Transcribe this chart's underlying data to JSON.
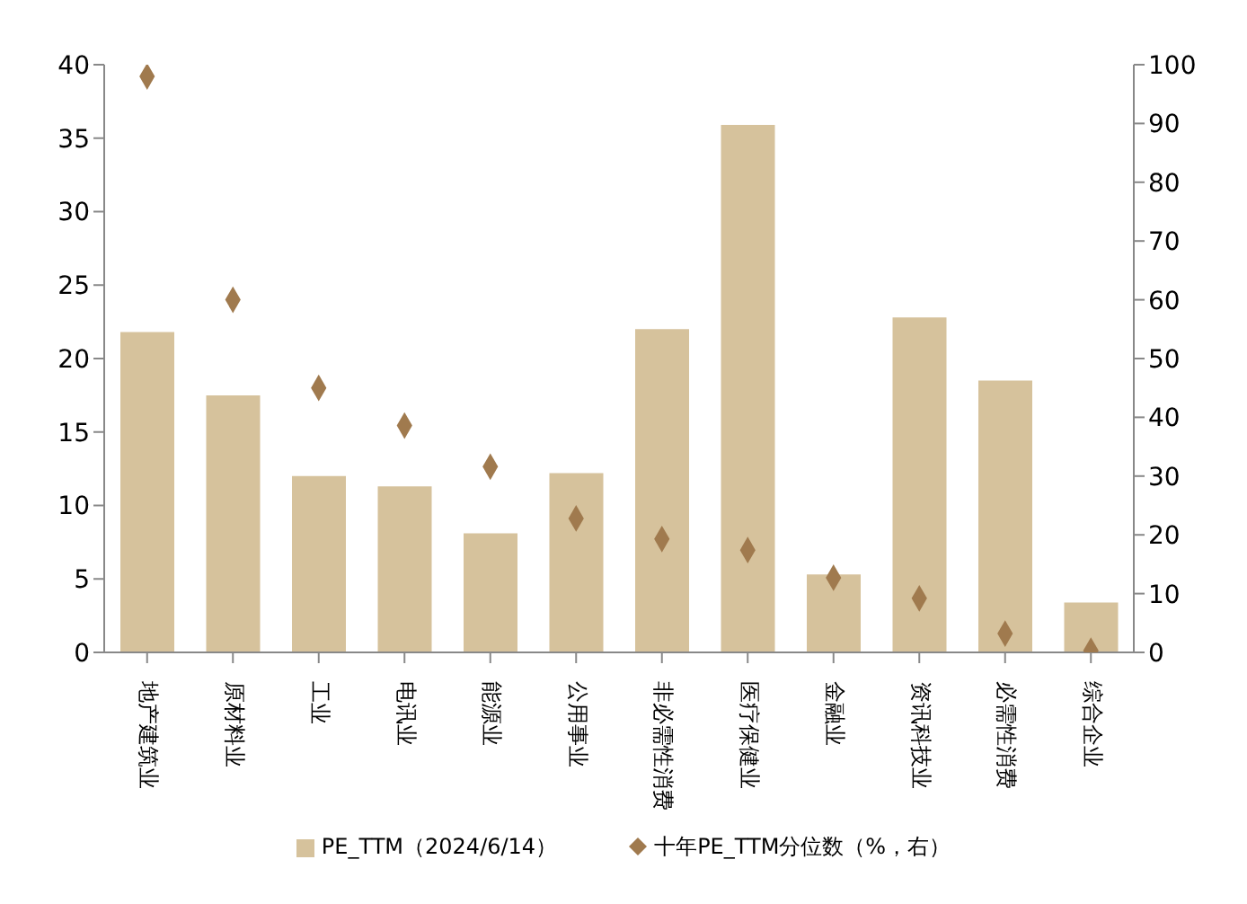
{
  "chart_data": {
    "type": "bar",
    "categories": [
      "地产建筑业",
      "原材料业",
      "工业",
      "电讯业",
      "能源业",
      "公用事业",
      "非必需性消费",
      "医疗保健业",
      "金融业",
      "资讯科技业",
      "必需性消费",
      "综合企业"
    ],
    "series": [
      {
        "name": "PE_TTM（2024/6/14）",
        "color": "#d6c29c",
        "values": [
          21.8,
          17.5,
          12.0,
          11.3,
          8.1,
          12.2,
          22.0,
          35.9,
          5.3,
          22.8,
          18.5,
          3.4
        ]
      },
      {
        "name": "十年PE_TTM分位数（%，右）",
        "type": "scatter",
        "axis": "y2",
        "color": "#a07a4e",
        "values": [
          98,
          60,
          45,
          38.6,
          31.6,
          22.8,
          19.3,
          17.4,
          12.7,
          9.2,
          3.2,
          0.3
        ]
      }
    ],
    "ylim": [
      0,
      40
    ],
    "yticks": [
      0,
      5,
      10,
      15,
      20,
      25,
      30,
      35,
      40
    ],
    "y2lim": [
      0,
      100
    ],
    "y2ticks": [
      0,
      10,
      20,
      30,
      40,
      50,
      60,
      70,
      80,
      90,
      100
    ],
    "marker": "diamond",
    "legend": "bottom",
    "grid": false
  }
}
